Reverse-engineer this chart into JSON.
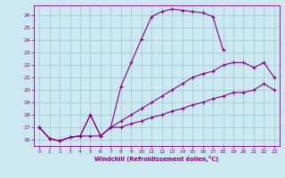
{
  "xlabel": "Windchill (Refroidissement éolien,°C)",
  "xlim": [
    -0.5,
    23.5
  ],
  "ylim": [
    15.5,
    26.8
  ],
  "yticks": [
    16,
    17,
    18,
    19,
    20,
    21,
    22,
    23,
    24,
    25,
    26
  ],
  "xticks": [
    0,
    1,
    2,
    3,
    4,
    5,
    6,
    7,
    8,
    9,
    10,
    11,
    12,
    13,
    14,
    15,
    16,
    17,
    18,
    19,
    20,
    21,
    22,
    23
  ],
  "bg_color": "#cce8f0",
  "line_color": "#880088",
  "grid_color": "#99bbcc",
  "lines": [
    {
      "x": [
        0,
        1,
        2,
        3,
        4,
        5,
        6,
        7,
        8,
        9,
        10,
        11,
        12,
        13,
        14,
        15,
        16,
        17,
        18
      ],
      "y": [
        17.0,
        16.1,
        15.9,
        16.2,
        16.3,
        18.0,
        16.3,
        17.0,
        20.3,
        22.2,
        24.1,
        25.9,
        26.3,
        26.5,
        26.4,
        26.3,
        26.2,
        25.9,
        23.2
      ]
    },
    {
      "x": [
        0,
        1,
        2,
        3,
        4,
        5,
        6,
        7,
        8,
        9,
        10,
        11,
        12,
        13,
        14,
        15,
        16,
        17,
        18,
        19,
        20,
        21,
        22,
        23
      ],
      "y": [
        17.0,
        16.1,
        15.9,
        16.2,
        16.3,
        18.0,
        16.3,
        17.0,
        17.5,
        18.0,
        18.5,
        19.0,
        19.5,
        20.0,
        20.5,
        21.0,
        21.3,
        21.5,
        22.0,
        22.2,
        22.2,
        21.8,
        22.2,
        21.0
      ]
    },
    {
      "x": [
        0,
        1,
        2,
        3,
        4,
        5,
        6,
        7,
        8,
        9,
        10,
        11,
        12,
        13,
        14,
        15,
        16,
        17,
        18,
        19,
        20,
        21,
        22,
        23
      ],
      "y": [
        17.0,
        16.1,
        15.9,
        16.2,
        16.3,
        16.3,
        16.3,
        17.0,
        17.0,
        17.3,
        17.5,
        17.8,
        18.0,
        18.3,
        18.5,
        18.8,
        19.0,
        19.3,
        19.5,
        19.8,
        19.8,
        20.0,
        20.5,
        20.0
      ]
    }
  ]
}
